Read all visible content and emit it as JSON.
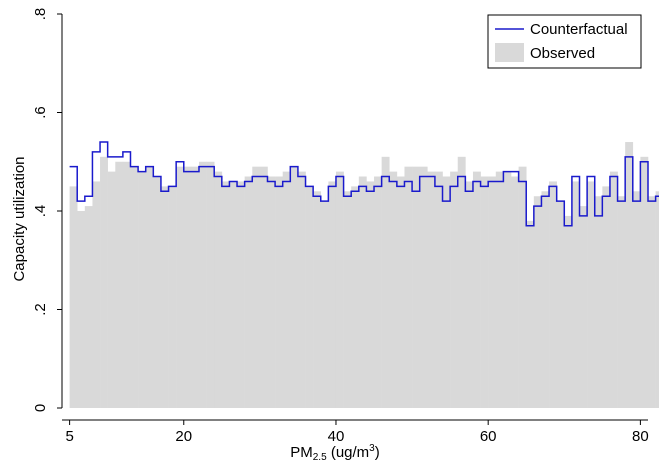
{
  "chart_data": {
    "type": "bar",
    "xlabel_main": "PM",
    "xlabel_sub": "2.5",
    "xlabel_unit_pre": " (ug/m",
    "xlabel_unit_sup": "3",
    "xlabel_unit_post": ")",
    "ylabel": "Capacity utilization",
    "xlim": [
      4,
      81
    ],
    "ylim": [
      0,
      0.8
    ],
    "xticks": [
      {
        "value": 5,
        "label": "5"
      },
      {
        "value": 20,
        "label": "20"
      },
      {
        "value": 40,
        "label": "40"
      },
      {
        "value": 60,
        "label": "60"
      },
      {
        "value": 80,
        "label": "80"
      }
    ],
    "yticks": [
      {
        "value": 0,
        "label": "0"
      },
      {
        "value": 0.2,
        "label": ".2"
      },
      {
        "value": 0.4,
        "label": ".4"
      },
      {
        "value": 0.6,
        "label": ".6"
      },
      {
        "value": 0.8,
        "label": ".8"
      }
    ],
    "bin_start": 5,
    "bin_width": 1,
    "grid": false,
    "legend_position": "top-right",
    "colors": {
      "counterfactual": "#1a1acc",
      "observed": "#d9d9d9"
    },
    "series": [
      {
        "name": "Counterfactual",
        "style": "step-line",
        "values": [
          0.49,
          0.42,
          0.43,
          0.52,
          0.54,
          0.51,
          0.51,
          0.52,
          0.49,
          0.48,
          0.49,
          0.47,
          0.44,
          0.45,
          0.5,
          0.48,
          0.48,
          0.49,
          0.49,
          0.47,
          0.45,
          0.46,
          0.45,
          0.46,
          0.47,
          0.47,
          0.46,
          0.45,
          0.46,
          0.49,
          0.47,
          0.45,
          0.43,
          0.42,
          0.45,
          0.47,
          0.43,
          0.44,
          0.45,
          0.44,
          0.45,
          0.47,
          0.46,
          0.45,
          0.46,
          0.44,
          0.47,
          0.47,
          0.45,
          0.42,
          0.45,
          0.47,
          0.44,
          0.46,
          0.45,
          0.46,
          0.46,
          0.48,
          0.48,
          0.46,
          0.37,
          0.41,
          0.43,
          0.45,
          0.42,
          0.37,
          0.47,
          0.39,
          0.47,
          0.39,
          0.43,
          0.47,
          0.42,
          0.51,
          0.42,
          0.5,
          0.42,
          0.43,
          0.41,
          0.4,
          0.4
        ]
      },
      {
        "name": "Observed",
        "style": "bar",
        "values": [
          0.45,
          0.4,
          0.41,
          0.46,
          0.51,
          0.48,
          0.5,
          0.5,
          0.49,
          0.48,
          0.49,
          0.47,
          0.45,
          0.45,
          0.49,
          0.49,
          0.49,
          0.5,
          0.5,
          0.48,
          0.46,
          0.46,
          0.46,
          0.47,
          0.49,
          0.49,
          0.47,
          0.47,
          0.48,
          0.49,
          0.48,
          0.45,
          0.44,
          0.42,
          0.46,
          0.48,
          0.44,
          0.45,
          0.47,
          0.46,
          0.47,
          0.51,
          0.48,
          0.47,
          0.49,
          0.49,
          0.49,
          0.48,
          0.48,
          0.47,
          0.48,
          0.51,
          0.46,
          0.48,
          0.47,
          0.47,
          0.48,
          0.48,
          0.47,
          0.49,
          0.38,
          0.43,
          0.44,
          0.46,
          0.42,
          0.39,
          0.46,
          0.41,
          0.46,
          0.43,
          0.45,
          0.48,
          0.43,
          0.54,
          0.44,
          0.51,
          0.43,
          0.44,
          0.42,
          0.43,
          0.41
        ]
      }
    ]
  }
}
